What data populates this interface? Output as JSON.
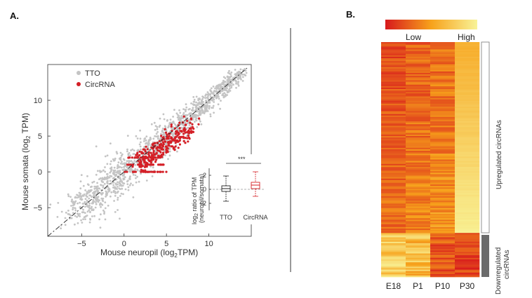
{
  "figure": {
    "panels": [
      {
        "letter": "A."
      },
      {
        "letter": "B."
      }
    ]
  },
  "chart_data": [
    {
      "type": "scatter",
      "title": "",
      "xlabel": "Mouse neuropil (log",
      "xlabel_sub": "2",
      "xlabel_tail": "TPM)",
      "ylabel": "Mouse somata (log",
      "ylabel_sub": "2",
      "ylabel_tail": " TPM)",
      "xlim": [
        -9,
        15
      ],
      "ylim": [
        -9,
        15
      ],
      "xticks": [
        -5,
        0,
        5,
        10
      ],
      "yticks": [
        -5,
        0,
        5,
        10
      ],
      "legend_position": "top-left",
      "identity_line": true,
      "series": [
        {
          "name": "TTO",
          "color": "#c4c4c4",
          "x_range": [
            -7,
            14
          ],
          "y_range": [
            -7,
            14
          ],
          "density": "high"
        },
        {
          "name": "CircRNA",
          "color": "#d41f26",
          "x_range": [
            0,
            8
          ],
          "y_range": [
            0,
            7
          ],
          "note": "includes rows at integer-like low values near y=0,1,2"
        }
      ],
      "inset": {
        "type": "boxplot",
        "significance": "***",
        "ylabel_line1": "log",
        "ylabel_sub": "2",
        "ylabel_line1_tail": " ratio of TPM",
        "ylabel_line2": "(neuropil/somata)",
        "yticks": [
          -2,
          0,
          2
        ],
        "ylim": [
          -3,
          3
        ],
        "categories": [
          "TTO",
          "CircRNA"
        ],
        "boxes": [
          {
            "name": "TTO",
            "color": "#222222",
            "q1": -0.3,
            "median": 0.1,
            "q3": 0.5,
            "whisker_low": -1.7,
            "whisker_high": 1.9
          },
          {
            "name": "CircRNA",
            "color": "#d41f26",
            "q1": 0.1,
            "median": 0.6,
            "q3": 1.0,
            "whisker_low": -1.0,
            "whisker_high": 2.5
          }
        ]
      }
    },
    {
      "type": "heatmap",
      "title": "",
      "colorbar_low": "Low",
      "colorbar_high": "High",
      "colors": {
        "low": "#d7191c",
        "mid": "#f7a21b",
        "high": "#f8f398"
      },
      "columns": [
        "E18",
        "P1",
        "P10",
        "P30"
      ],
      "row_groups": [
        {
          "label": "Upregulated circRNAs",
          "bar_color": "#ffffff",
          "rows": 130
        },
        {
          "label": "Downregulated circRNAs",
          "bar_color": "#6b6b6b",
          "rows": 30
        }
      ]
    }
  ]
}
